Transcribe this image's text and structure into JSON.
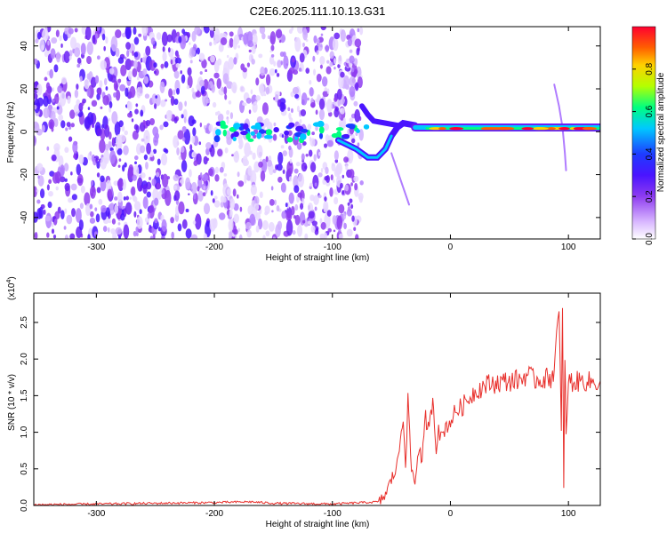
{
  "figure": {
    "title": "C2E6.2025.111.10.13.G31"
  },
  "chart_data": [
    {
      "type": "heatmap",
      "title": "C2E6.2025.111.10.13.G31",
      "xlabel": "Height of straight line (km)",
      "ylabel": "Frequency (Hz)",
      "xlim": [
        -353,
        127
      ],
      "ylim": [
        -50,
        49
      ],
      "xticks": [
        -300,
        -200,
        -100,
        0,
        100
      ],
      "yticks": [
        -40,
        -20,
        0,
        20,
        40
      ],
      "colorbar": {
        "label": "Normalized spectral amplitude",
        "range": [
          0,
          1
        ],
        "ticks": [
          "0.0",
          "0.2",
          "0.4",
          "0.6",
          "0.8"
        ],
        "colormap": [
          "#ffffff",
          "#d9b8ff",
          "#8e3cf0",
          "#4a14ff",
          "#1e3cff",
          "#00c8ff",
          "#00ff80",
          "#b4ff00",
          "#ffd000",
          "#ff6000",
          "#ff0030"
        ]
      },
      "features": [
        {
          "name": "scattered noise speckle",
          "x_range": [
            -353,
            -75
          ],
          "freq_range": [
            -50,
            49
          ],
          "amplitude": 0.2
        },
        {
          "name": "blobs near zero",
          "x_range": [
            -200,
            -150
          ],
          "freq_range": [
            -3,
            3
          ],
          "amplitude": 0.5
        },
        {
          "name": "main carrier line",
          "x_range": [
            -30,
            127
          ],
          "freq_center": 1.5,
          "amplitude": 0.95
        }
      ],
      "grid": false
    },
    {
      "type": "line",
      "xlabel": "Height of straight line (km)",
      "ylabel": "SNR (10 * v/v)",
      "y_scale_label": "(x10",
      "y_scale_exponent": "4",
      "xlim": [
        -353,
        127
      ],
      "ylim": [
        0,
        2.9
      ],
      "xticks": [
        -300,
        -200,
        -100,
        0,
        100
      ],
      "yticks": [
        "0.0",
        "0.5",
        "1.0",
        "1.5",
        "2.0",
        "2.5"
      ],
      "line_color": "#e8302c",
      "series": [
        {
          "x": [
            -353,
            -300,
            -250,
            -200,
            -170,
            -150,
            -100,
            -60,
            -55,
            -50,
            -45,
            -40,
            -38,
            -36,
            -33,
            -30,
            -27,
            -24,
            -21,
            -18,
            -15,
            -12,
            -10,
            -8,
            -5,
            0,
            5,
            10,
            15,
            20,
            25,
            30,
            40,
            50,
            60,
            65,
            70,
            80,
            85,
            88,
            90,
            92,
            94,
            95,
            96,
            97,
            98,
            100,
            105,
            110,
            115,
            120,
            127
          ],
          "values": [
            0.01,
            0.02,
            0.03,
            0.04,
            0.05,
            0.03,
            0.02,
            0.05,
            0.15,
            0.35,
            0.55,
            1.25,
            0.6,
            1.4,
            0.5,
            0.3,
            0.8,
            0.6,
            1.2,
            1.0,
            1.5,
            0.8,
            1.1,
            0.9,
            1.05,
            1.15,
            1.3,
            1.35,
            1.45,
            1.55,
            1.6,
            1.65,
            1.68,
            1.7,
            1.72,
            1.8,
            1.72,
            1.73,
            1.75,
            1.85,
            2.3,
            2.6,
            1.0,
            2.85,
            0.2,
            2.0,
            1.0,
            1.7,
            1.68,
            1.7,
            1.7,
            1.68,
            1.7
          ]
        }
      ],
      "grid": false
    }
  ]
}
